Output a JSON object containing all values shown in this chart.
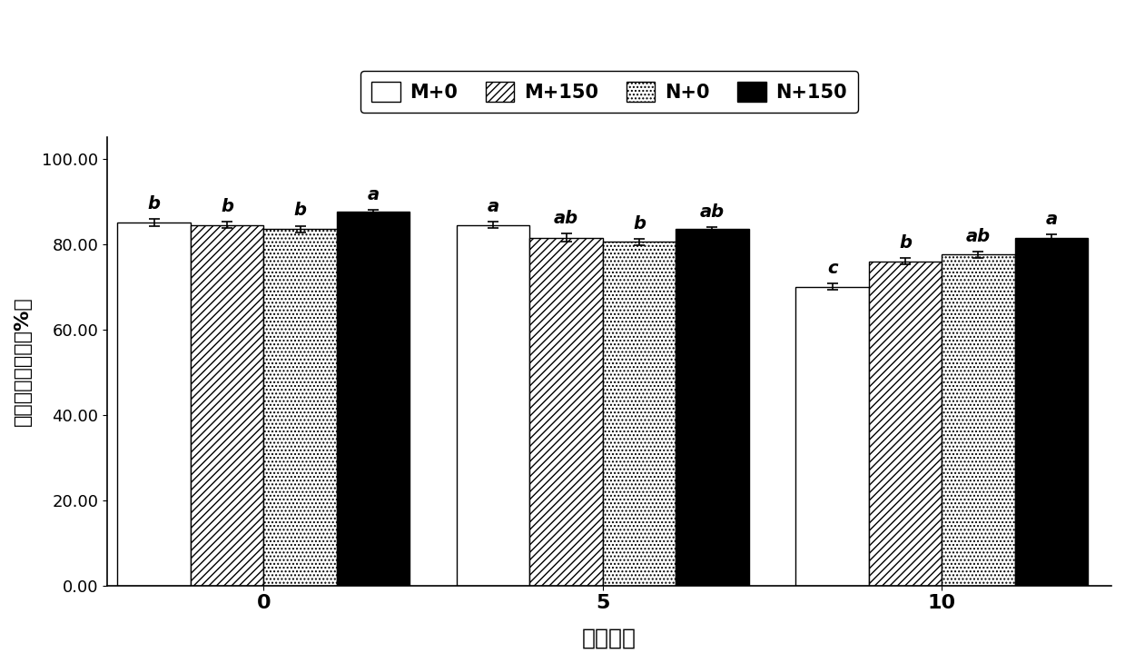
{
  "groups": [
    0,
    5,
    10
  ],
  "series_labels": [
    "M+0",
    "M+150",
    "N+0",
    "N+150"
  ],
  "values": [
    [
      85.0,
      84.5,
      83.5,
      87.5
    ],
    [
      84.5,
      81.5,
      80.5,
      83.5
    ],
    [
      70.0,
      76.0,
      77.5,
      81.5
    ]
  ],
  "errors": [
    [
      0.8,
      0.8,
      0.8,
      0.5
    ],
    [
      0.8,
      1.0,
      0.8,
      0.5
    ],
    [
      0.8,
      0.8,
      0.8,
      0.7
    ]
  ],
  "sig_labels": [
    [
      "b",
      "b",
      "b",
      "a"
    ],
    [
      "a",
      "ab",
      "b",
      "ab"
    ],
    [
      "c",
      "b",
      "ab",
      "a"
    ]
  ],
  "ylabel": "叶片相对含水量（%）",
  "xlabel": "干旱天数",
  "ylim": [
    0,
    105
  ],
  "yticks": [
    0.0,
    20.0,
    40.0,
    60.0,
    80.0,
    100.0
  ],
  "ytick_labels": [
    "0.00",
    "20.00",
    "40.00",
    "60.00",
    "80.00",
    "100.00"
  ],
  "bar_width": 0.28,
  "hatches": [
    "",
    "////",
    "....",
    "----"
  ],
  "facecolors": [
    "white",
    "white",
    "white",
    "black"
  ],
  "edgecolors": [
    "black",
    "black",
    "black",
    "black"
  ],
  "hatch_colors": [
    "black",
    "black",
    "black",
    "white"
  ],
  "background_color": "white",
  "legend_fontsize": 15,
  "axis_fontsize": 16,
  "tick_fontsize": 13,
  "sig_fontsize": 14
}
